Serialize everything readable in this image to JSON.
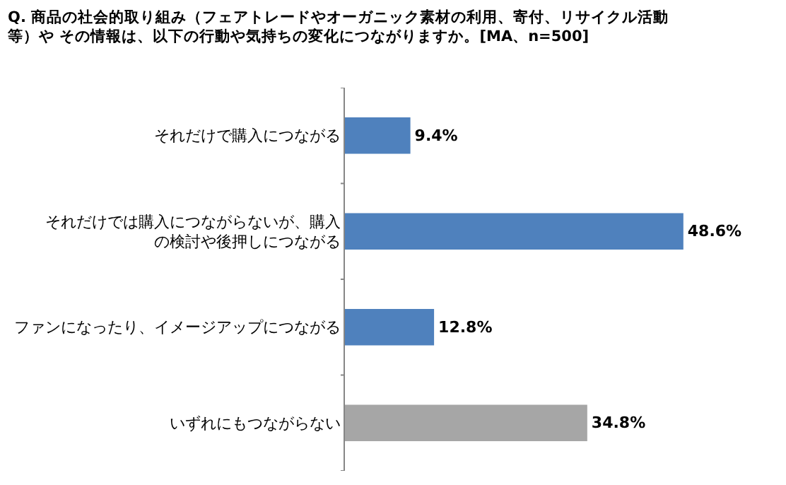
{
  "chart_data": {
    "type": "bar",
    "orientation": "horizontal",
    "title": "Q. 商品の社会的取り組み（フェアトレードやオーガニック素材の利用、寄付、リサイクル活動等）や その情報は、以下の行動や気持ちの変化につながりますか。[MA、n=500]",
    "categories": [
      "それだけで購入につながる",
      "それだけでは購入につながらないが、購入の検討や後押しにつながる",
      "ファンになったり、イメージアップにつながる",
      "いずれにもつながらない"
    ],
    "values": [
      9.4,
      48.6,
      12.8,
      34.8
    ],
    "value_labels": [
      "9.4%",
      "48.6%",
      "12.8%",
      "34.8%"
    ],
    "colors": [
      "#4f81bd",
      "#4f81bd",
      "#4f81bd",
      "#a6a6a6"
    ],
    "legend": false
  }
}
